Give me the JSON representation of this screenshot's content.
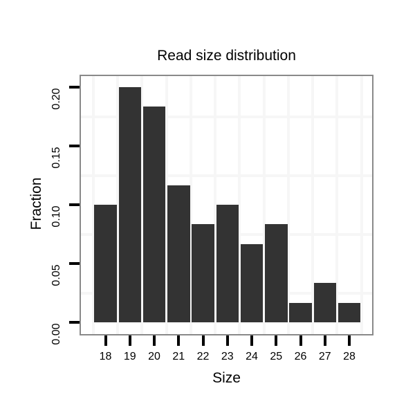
{
  "chart_data": {
    "type": "bar",
    "title": "Read size distribution",
    "xlabel": "Size",
    "ylabel": "Fraction",
    "categories": [
      "18",
      "19",
      "20",
      "21",
      "22",
      "23",
      "24",
      "25",
      "26",
      "27",
      "28"
    ],
    "values": [
      0.1,
      0.2,
      0.1833,
      0.1167,
      0.0833,
      0.1,
      0.0667,
      0.0833,
      0.0167,
      0.0333,
      0.0167
    ],
    "y_ticks": [
      {
        "value": 0.0,
        "label": "0.00"
      },
      {
        "value": 0.05,
        "label": "0.05"
      },
      {
        "value": 0.1,
        "label": "0.10"
      },
      {
        "value": 0.15,
        "label": "0.15"
      },
      {
        "value": 0.2,
        "label": "0.20"
      }
    ],
    "y_minor_gridlines": [
      0.025,
      0.075,
      0.125,
      0.175
    ],
    "ylim": [
      0,
      0.2095
    ],
    "grid": "light minor gridlines only, vertical lines between categories",
    "legend": "none",
    "colors": {
      "bar": "#333333",
      "grid": "#f6f6f6",
      "panel_border": "#898989",
      "tick": "#000000",
      "text": "#000000",
      "background": "#ffffff"
    }
  }
}
